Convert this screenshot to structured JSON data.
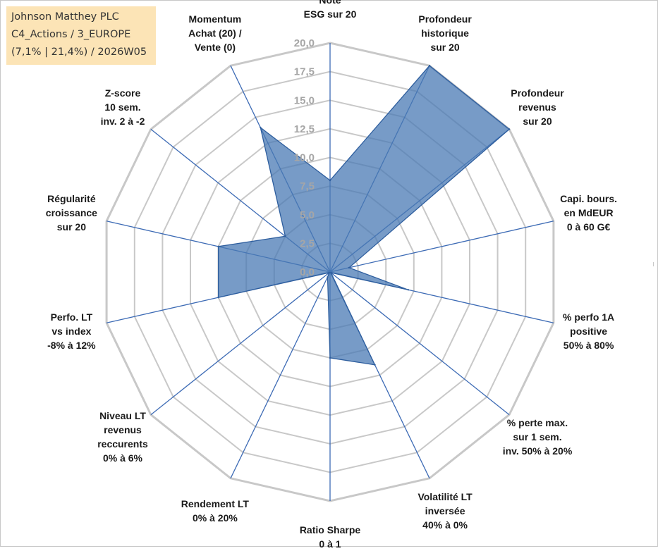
{
  "header": {
    "line1": "Johnson Matthey PLC",
    "line2": "C4_Actions / 3_EUROPE",
    "line3": "(7,1% | 21,4%) / 2026W05"
  },
  "colors": {
    "fill": "#4a7ab4",
    "fill_opacity": "0.75",
    "stroke": "#2e5e9e",
    "grid": "#c8c8c8",
    "spoke": "#3d6bb5",
    "tick": "#a6a6a6",
    "header_bg": "#fce4b6"
  },
  "chart_data": {
    "type": "radar",
    "title": "Johnson Matthey PLC",
    "rlim": [
      0,
      20
    ],
    "rticks": [
      "0,0",
      "2,5",
      "5,0",
      "7,5",
      "10,0",
      "12,5",
      "15,0",
      "17,5",
      "20,0"
    ],
    "grid": true,
    "axes": [
      {
        "lines": [
          "Note",
          "ESG sur 20"
        ],
        "value": 8.0
      },
      {
        "lines": [
          "Profondeur",
          "historique",
          "sur 20"
        ],
        "value": 20.0
      },
      {
        "lines": [
          "Profondeur",
          "revenus",
          "sur 20"
        ],
        "value": 20.0
      },
      {
        "lines": [
          "Capi. bours.",
          "en MdEUR",
          "0 à 60 G€"
        ],
        "value": 1.7
      },
      {
        "lines": [
          "% perfo 1A",
          "positive",
          "50% à 80%"
        ],
        "value": 7.0
      },
      {
        "lines": [
          "% perte max.",
          "sur 1 sem.",
          "inv. 50% à 20%"
        ],
        "value": 0.1
      },
      {
        "lines": [
          "Volatilité LT",
          "inversée",
          "40% à 0%"
        ],
        "value": 9.0
      },
      {
        "lines": [
          "Ratio Sharpe",
          "0 à 1"
        ],
        "value": 7.5
      },
      {
        "lines": [
          "Rendement LT",
          "0% à 20%"
        ],
        "value": 0.5
      },
      {
        "lines": [
          "Niveau LT",
          "revenus",
          "reccurents",
          "0% à 6%"
        ],
        "value": 0.1
      },
      {
        "lines": [
          "Perfo. LT",
          "vs index",
          "-8% à 12%"
        ],
        "value": 10.0
      },
      {
        "lines": [
          "Régularité",
          "croissance",
          "sur 20"
        ],
        "value": 10.0
      },
      {
        "lines": [
          "Z-score",
          "10 sem.",
          "inv. 2 à -2"
        ],
        "value": 5.0
      },
      {
        "lines": [
          "Momentum",
          "Achat (20) /",
          "Vente (0)"
        ],
        "value": 14.0
      }
    ]
  }
}
